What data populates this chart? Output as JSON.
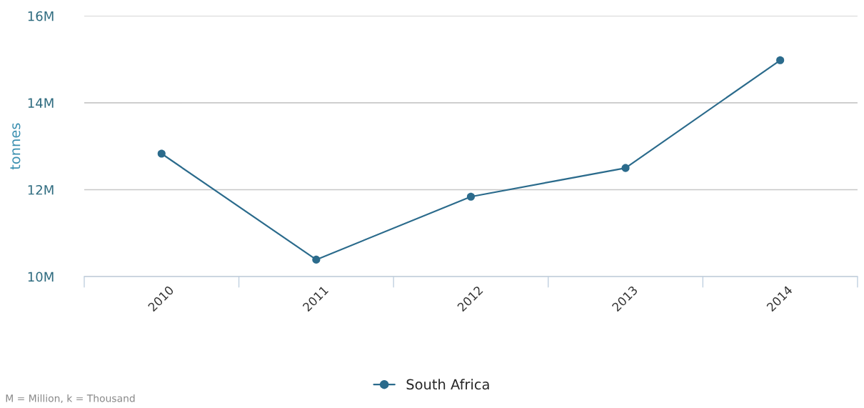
{
  "chart_data": {
    "type": "line",
    "ylabel": "tonnes",
    "categories": [
      "2010",
      "2011",
      "2012",
      "2013",
      "2014"
    ],
    "series": [
      {
        "name": "South Africa",
        "color": "#2b6b8c",
        "values": [
          12.83,
          10.39,
          11.84,
          12.5,
          14.98
        ]
      }
    ],
    "ylim": [
      10,
      16
    ],
    "yticks": [
      {
        "value": 10,
        "label": "10M"
      },
      {
        "value": 12,
        "label": "12M"
      },
      {
        "value": 14,
        "label": "14M"
      },
      {
        "value": 16,
        "label": "16M"
      }
    ],
    "grid": "y",
    "legend": "bottom",
    "marker": "circle",
    "line_style": "solid",
    "annotations": [
      "M = Million, k = Thousand"
    ]
  }
}
